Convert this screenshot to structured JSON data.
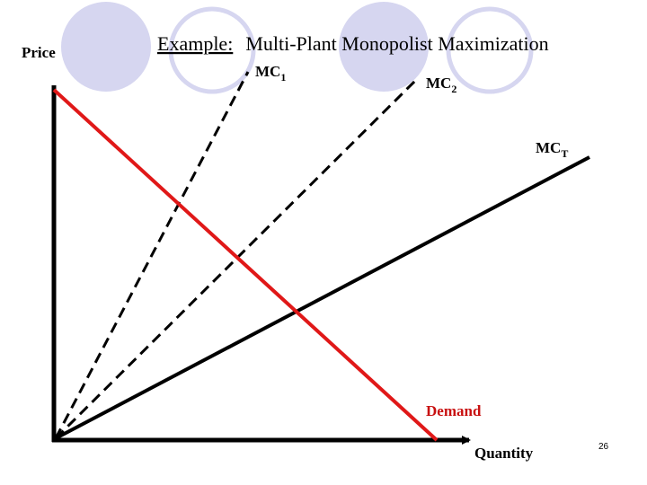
{
  "title": {
    "prefix": "Example:",
    "text": "Multi-Plant Monopolist Maximization"
  },
  "axes": {
    "y": "Price",
    "x": "Quantity"
  },
  "curves": [
    {
      "label": "MC",
      "subscript": "1"
    },
    {
      "label": "MC",
      "subscript": "2"
    },
    {
      "label": "MC",
      "subscript": "T"
    }
  ],
  "demand": "Demand",
  "page_number": "26"
}
